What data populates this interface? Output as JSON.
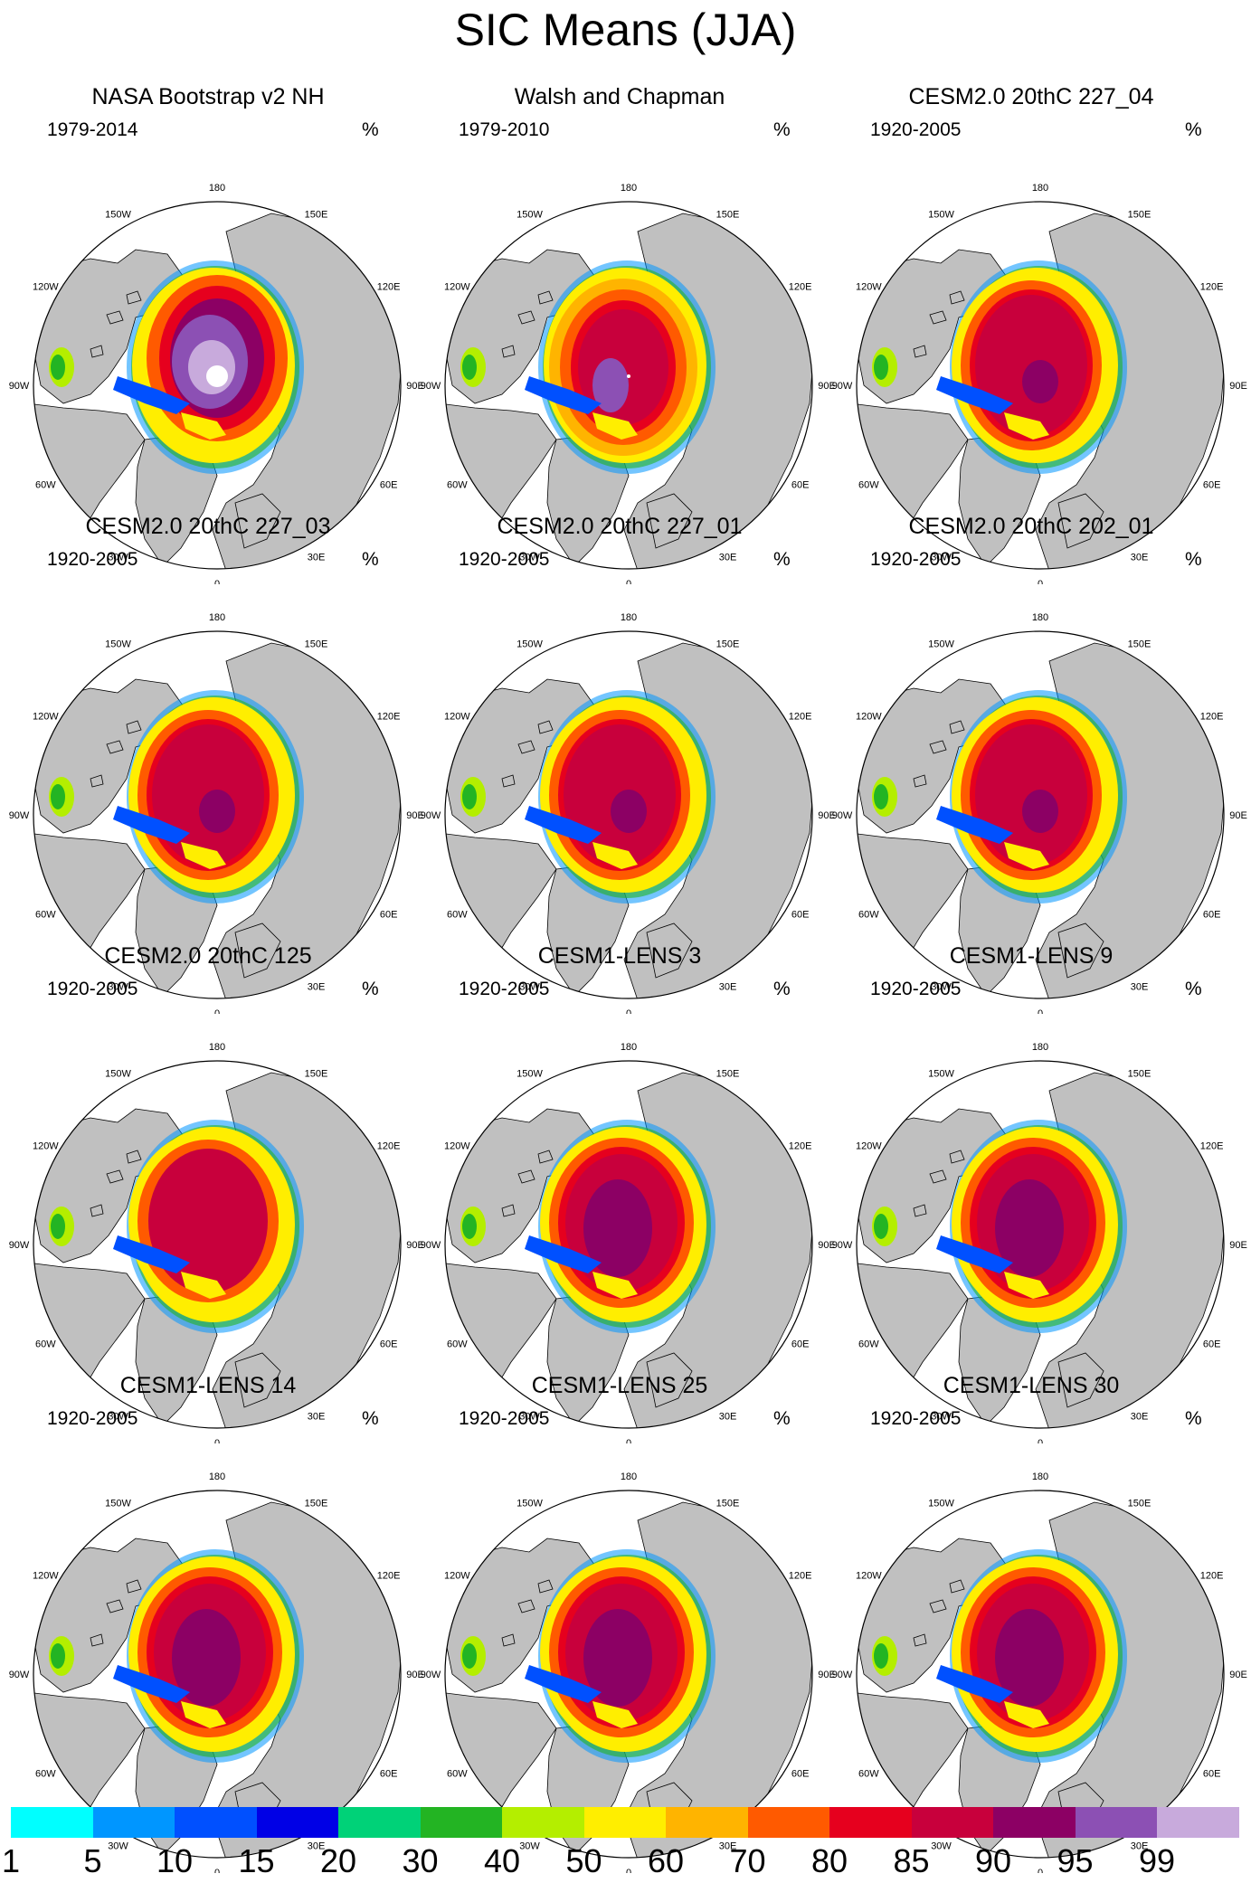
{
  "title": "SIC Means (JJA)",
  "panels": [
    {
      "title": "NASA Bootstrap v2 NH",
      "period": "1979-2014",
      "units": "%",
      "variant": "obs1"
    },
    {
      "title": "Walsh and Chapman",
      "period": "1979-2010",
      "units": "%",
      "variant": "obs2"
    },
    {
      "title": "CESM2.0 20thC 227_04",
      "period": "1920-2005",
      "units": "%",
      "variant": "cesm2"
    },
    {
      "title": "CESM2.0 20thC 227_03",
      "period": "1920-2005",
      "units": "%",
      "variant": "cesm2"
    },
    {
      "title": "CESM2.0 20thC 227_01",
      "period": "1920-2005",
      "units": "%",
      "variant": "cesm2"
    },
    {
      "title": "CESM2.0 20thC 202_01",
      "period": "1920-2005",
      "units": "%",
      "variant": "cesm2"
    },
    {
      "title": "CESM2.0 20thC 125",
      "period": "1920-2005",
      "units": "%",
      "variant": "cesm2b"
    },
    {
      "title": "CESM1-LENS 3",
      "period": "1920-2005",
      "units": "%",
      "variant": "lens"
    },
    {
      "title": "CESM1-LENS 9",
      "period": "1920-2005",
      "units": "%",
      "variant": "lens"
    },
    {
      "title": "CESM1-LENS 14",
      "period": "1920-2005",
      "units": "%",
      "variant": "lens"
    },
    {
      "title": "CESM1-LENS 25",
      "period": "1920-2005",
      "units": "%",
      "variant": "lens"
    },
    {
      "title": "CESM1-LENS 30",
      "period": "1920-2005",
      "units": "%",
      "variant": "lens"
    }
  ],
  "longitude_labels": [
    "180",
    "150E",
    "120E",
    "90E",
    "60E",
    "30E",
    "0",
    "30W",
    "60W",
    "90W",
    "120W",
    "150W"
  ],
  "colorbar": {
    "labels": [
      "1",
      "5",
      "10",
      "15",
      "20",
      "30",
      "40",
      "50",
      "60",
      "70",
      "80",
      "85",
      "90",
      "95",
      "99"
    ],
    "colors": [
      "#00ffff",
      "#0096ff",
      "#0050ff",
      "#0000e6",
      "#00d278",
      "#23b423",
      "#b4ee00",
      "#ffee00",
      "#ffb400",
      "#ff5a00",
      "#e6001e",
      "#c8003c",
      "#8c0064",
      "#8c50b4",
      "#c8aadc"
    ]
  },
  "colors": {
    "land": "#c0c0c0",
    "ocean": "#ffffff",
    "coast": "#000000"
  }
}
